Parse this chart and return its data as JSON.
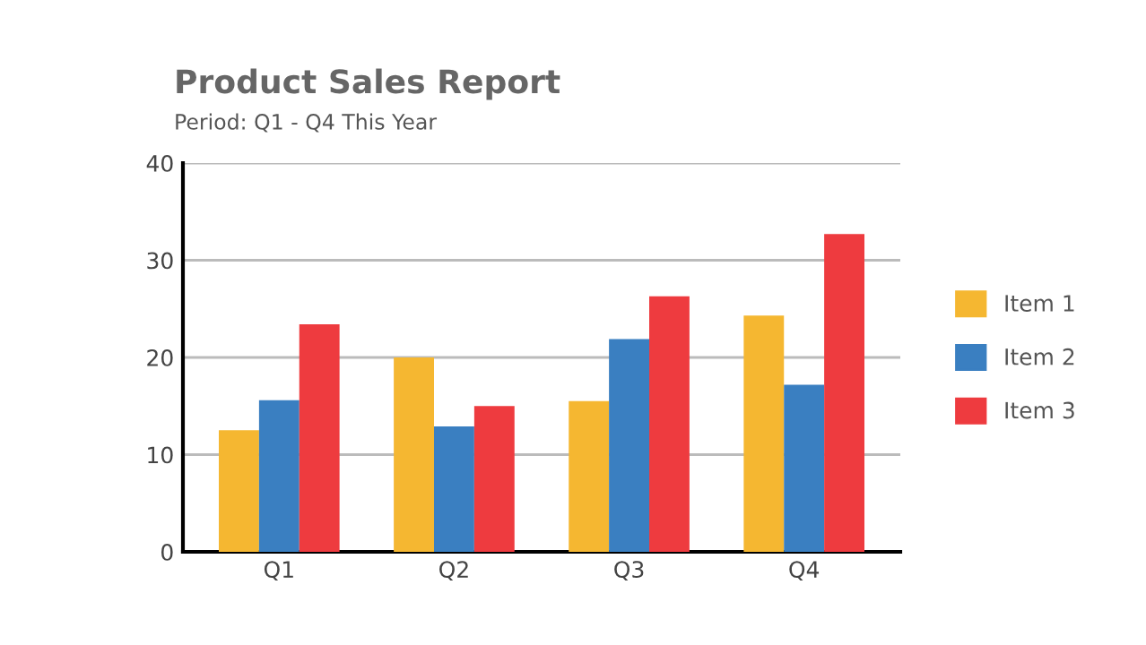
{
  "chart_data": {
    "type": "bar",
    "title": "Product Sales Report",
    "subtitle": "Period: Q1 - Q4 This Year",
    "categories": [
      "Q1",
      "Q2",
      "Q3",
      "Q4"
    ],
    "series": [
      {
        "name": "Item 1",
        "color": "#f5b731",
        "values": [
          12.5,
          20.0,
          15.5,
          24.3
        ]
      },
      {
        "name": "Item 2",
        "color": "#3a7fc1",
        "values": [
          15.6,
          12.9,
          21.9,
          17.2
        ]
      },
      {
        "name": "Item 3",
        "color": "#ee3b3f",
        "values": [
          23.4,
          15.0,
          26.3,
          32.7
        ]
      }
    ],
    "ylim": [
      0,
      40
    ],
    "yticks": [
      0,
      10,
      20,
      30,
      40
    ],
    "grid": "y",
    "legend": "right"
  }
}
